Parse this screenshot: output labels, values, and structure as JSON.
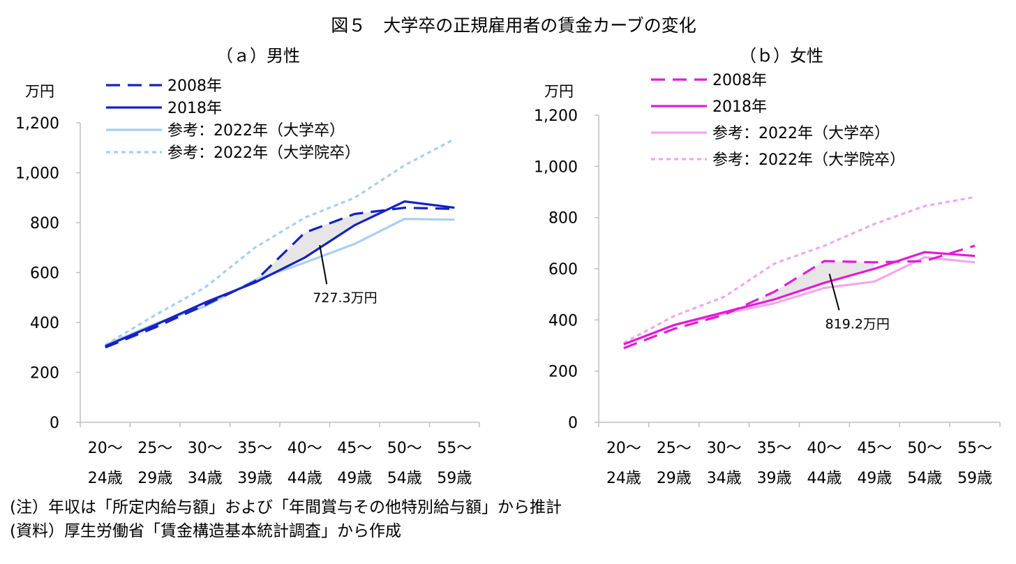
{
  "title": "図５　大学卒の正規雇用者の賃金カーブの変化",
  "notes": [
    "(注）年収は「所定内給与額」および「年間賞与その他特別給与額」から推計",
    "(資料）厚生労働省「賃金構造基本統計調査」から作成"
  ],
  "chart_data": [
    {
      "type": "line",
      "title": "（ａ）男性",
      "ylabel": "万円",
      "ylim": [
        0,
        1200
      ],
      "yticks": [
        "0",
        "200",
        "400",
        "600",
        "800",
        "1,000",
        "1,200"
      ],
      "categories": [
        [
          "20～",
          "24歳"
        ],
        [
          "25～",
          "29歳"
        ],
        [
          "30～",
          "34歳"
        ],
        [
          "35～",
          "39歳"
        ],
        [
          "40～",
          "44歳"
        ],
        [
          "45～",
          "49歳"
        ],
        [
          "50～",
          "54歳"
        ],
        [
          "55～",
          "59歳"
        ]
      ],
      "legend_placement": "top-left",
      "series": [
        {
          "name": "2008年",
          "color": "#1520c2",
          "dash": "long-dash",
          "values": [
            300,
            380,
            470,
            565,
            760,
            835,
            860,
            855
          ]
        },
        {
          "name": "2018年",
          "color": "#1520c2",
          "dash": "solid",
          "values": [
            305,
            390,
            480,
            560,
            660,
            790,
            885,
            860
          ]
        },
        {
          "name": "参考：2022年（大学卒）",
          "color": "#a9cff0",
          "dash": "solid",
          "values": [
            310,
            395,
            465,
            570,
            640,
            715,
            815,
            812
          ]
        },
        {
          "name": "参考：2022年（大学院卒）",
          "color": "#a9cff0",
          "dash": "dotted",
          "values": [
            310,
            430,
            540,
            700,
            820,
            900,
            1030,
            1135
          ]
        }
      ],
      "shaded_region": {
        "color": "#dddddd",
        "from": 2.5,
        "to": 5.5
      },
      "annotation": {
        "text": "727.3万円",
        "pointer_to": {
          "x": 4.3,
          "y": 710
        },
        "label_at": {
          "x": 5.0,
          "y": 520
        }
      }
    },
    {
      "type": "line",
      "title": "（ｂ）女性",
      "ylabel": "万円",
      "ylim": [
        0,
        1200
      ],
      "yticks": [
        "0",
        "200",
        "400",
        "600",
        "800",
        "1,000",
        "1,200"
      ],
      "categories": [
        [
          "20～",
          "24歳"
        ],
        [
          "25～",
          "29歳"
        ],
        [
          "30～",
          "34歳"
        ],
        [
          "35～",
          "39歳"
        ],
        [
          "40～",
          "44歳"
        ],
        [
          "45～",
          "49歳"
        ],
        [
          "50～",
          "54歳"
        ],
        [
          "55～",
          "59歳"
        ]
      ],
      "legend_placement": "top-left",
      "series": [
        {
          "name": "2008年",
          "color": "#e31ad6",
          "dash": "long-dash",
          "values": [
            290,
            365,
            420,
            510,
            630,
            625,
            630,
            690
          ]
        },
        {
          "name": "2018年",
          "color": "#e31ad6",
          "dash": "solid",
          "values": [
            305,
            380,
            430,
            480,
            545,
            600,
            665,
            650
          ]
        },
        {
          "name": "参考：2022年（大学卒）",
          "color": "#f3a6ef",
          "dash": "solid",
          "values": [
            305,
            380,
            425,
            465,
            525,
            550,
            645,
            625
          ]
        },
        {
          "name": "参考：2022年（大学院卒）",
          "color": "#f3a6ef",
          "dash": "dotted",
          "values": [
            310,
            415,
            490,
            620,
            690,
            775,
            845,
            880
          ]
        }
      ],
      "shaded_region": {
        "color": "#dddddd",
        "from": 2.75,
        "to": 5.0
      },
      "annotation": {
        "text": "819.2万円",
        "pointer_to": {
          "x": 4.1,
          "y": 580
        },
        "label_at": {
          "x": 4.85,
          "y": 405
        }
      }
    }
  ]
}
